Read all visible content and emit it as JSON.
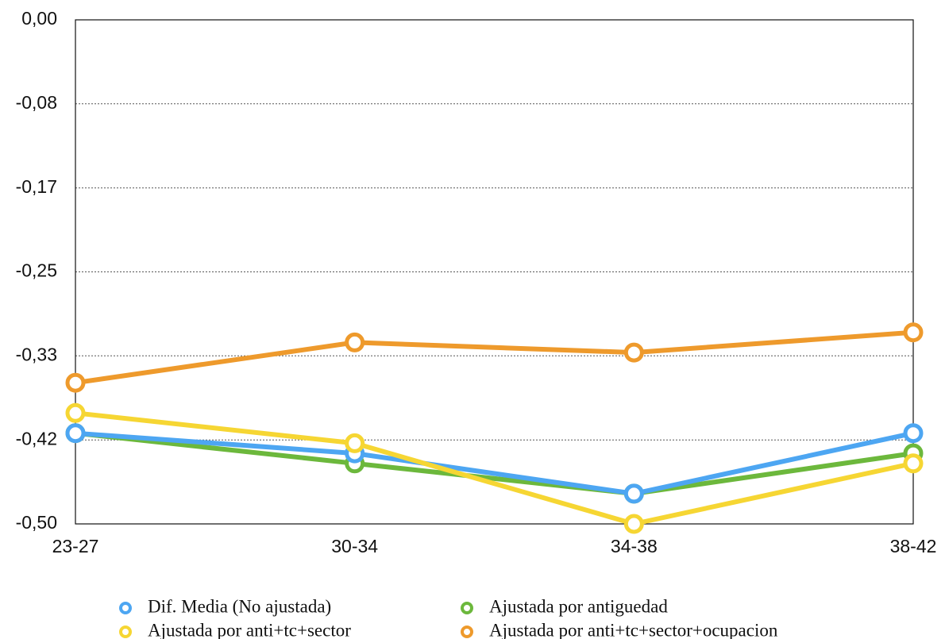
{
  "chart_data": {
    "type": "line",
    "categories": [
      "23-27",
      "30-34",
      "34-38",
      "38-42"
    ],
    "series": [
      {
        "name": "Dif. Media (No ajustada)",
        "color": "#4da6f2",
        "values": [
          -0.41,
          -0.43,
          -0.47,
          -0.41
        ]
      },
      {
        "name": "Ajustada por antiguedad",
        "color": "#6cb83c",
        "values": [
          -0.41,
          -0.44,
          -0.47,
          -0.43
        ]
      },
      {
        "name": "Ajustada por anti+tc+sector",
        "color": "#f6d633",
        "values": [
          -0.39,
          -0.42,
          -0.5,
          -0.44
        ]
      },
      {
        "name": "Ajustada por anti+tc+sector+ocupacion",
        "color": "#ee9a2c",
        "values": [
          -0.36,
          -0.32,
          -0.33,
          -0.31
        ]
      }
    ],
    "ylim": [
      -0.5,
      0
    ],
    "yticks": [
      {
        "value": 0,
        "label": "0,00"
      },
      {
        "value": -0.0833,
        "label": "-0,08"
      },
      {
        "value": -0.1667,
        "label": "-0,17"
      },
      {
        "value": -0.25,
        "label": "-0,25"
      },
      {
        "value": -0.3333,
        "label": "-0,33"
      },
      {
        "value": -0.4167,
        "label": "-0,42"
      },
      {
        "value": -0.5,
        "label": "-0,50"
      }
    ],
    "grid": true,
    "legend": "bottom"
  }
}
